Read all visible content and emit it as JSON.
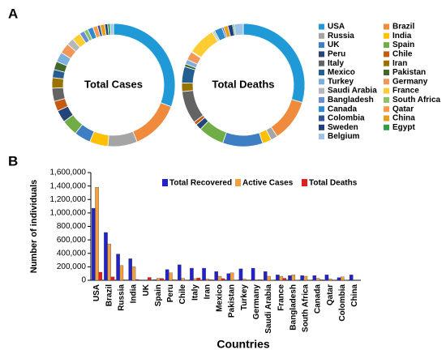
{
  "chart_data": [
    {
      "type": "donut",
      "label": "A",
      "title": "Total Cases",
      "categories": [
        "USA",
        "Brazil",
        "Russia",
        "India",
        "UK",
        "Spain",
        "Peru",
        "Chile",
        "Italy",
        "Iran",
        "Mexico",
        "Pakistan",
        "Turkey",
        "Germany",
        "Saudi Arabia",
        "France",
        "Bangladesh",
        "South Africa",
        "Canada",
        "Qatar",
        "Colombia",
        "China",
        "Sweden",
        "Egypt",
        "Belgium"
      ],
      "colors": [
        "#1f9ad6",
        "#f08a3c",
        "#a5a5a5",
        "#ffc000",
        "#3e7ec2",
        "#70ad47",
        "#264478",
        "#c55a11",
        "#636363",
        "#997300",
        "#255e91",
        "#43682b",
        "#7cafdd",
        "#f1975a",
        "#b7b7b7",
        "#ffcd33",
        "#698ed0",
        "#8cc168",
        "#2e8bd0",
        "#ff9a4a",
        "#2f5597",
        "#e6a020",
        "#1f3f7a",
        "#2e9e4a",
        "#9dc3e6"
      ],
      "values": [
        2100000,
        890000,
        530000,
        330000,
        295000,
        290000,
        220000,
        180000,
        237000,
        189000,
        146000,
        148000,
        178000,
        187000,
        127000,
        157000,
        90000,
        70000,
        99000,
        84000,
        50000,
        83000,
        53000,
        44000,
        60000
      ]
    },
    {
      "type": "donut",
      "title": "Total Deaths",
      "values": [
        117000,
        44000,
        7000,
        9500,
        41700,
        27000,
        6300,
        3400,
        34000,
        9000,
        17000,
        2800,
        4800,
        8800,
        900,
        29000,
        1200,
        1500,
        8200,
        90,
        1600,
        4600,
        5000,
        1500,
        9600
      ]
    },
    {
      "type": "bar",
      "label": "B",
      "ylabel": "Number of individuals",
      "xlabel": "Countries",
      "categories": [
        "USA",
        "Brazil",
        "Russia",
        "India",
        "UK",
        "Spain",
        "Peru",
        "Chile",
        "Italy",
        "Iran",
        "Mexico",
        "Pakistan",
        "Turkey",
        "Germany",
        "Saudi Arabia",
        "France",
        "Bangladesh",
        "South Africa",
        "Canada",
        "Qatar",
        "Colombia",
        "China"
      ],
      "series": [
        {
          "name": "Total Recovered",
          "color": "#2222cc",
          "values": [
            1070000,
            710000,
            390000,
            320000,
            0,
            10000,
            160000,
            230000,
            180000,
            180000,
            130000,
            100000,
            170000,
            180000,
            130000,
            80000,
            70000,
            70000,
            70000,
            80000,
            40000,
            80000
          ]
        },
        {
          "name": "Active Cases",
          "color": "#f0a040",
          "values": [
            1380000,
            540000,
            220000,
            200000,
            0,
            30000,
            110000,
            30000,
            25000,
            20000,
            60000,
            110000,
            20000,
            8000,
            60000,
            60000,
            80000,
            60000,
            30000,
            20000,
            50000,
            100
          ]
        },
        {
          "name": "Total Deaths",
          "color": "#e02020",
          "values": [
            120000,
            50000,
            7000,
            12000,
            42000,
            28000,
            8000,
            5000,
            35000,
            10000,
            25000,
            4000,
            5000,
            9000,
            2000,
            30000,
            2000,
            3000,
            9000,
            100,
            3000,
            5000
          ]
        }
      ],
      "ylim": [
        0,
        1600000
      ],
      "yticks": [
        0,
        {
          "value": 200000,
          "label": "200,000"
        },
        {
          "value": 400000,
          "label": "400,000"
        },
        {
          "value": 600000,
          "label": "600,000"
        },
        {
          "value": 800000,
          "label": "800,000"
        },
        {
          "value": 1000000,
          "label": "1,000,000"
        },
        {
          "value": 1200000,
          "label": "1,200,000"
        },
        {
          "value": 1400000,
          "label": "1,400,000"
        },
        {
          "value": 1600000,
          "label": "1,600,000"
        }
      ],
      "legend": "top-right"
    }
  ]
}
